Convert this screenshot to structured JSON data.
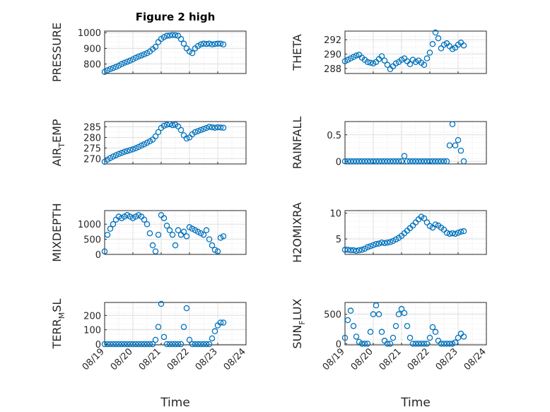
{
  "title": "Figure 2 high",
  "colors": {
    "marker": "#0072BD",
    "grid": "#dfdfdf",
    "axis": "#262626"
  },
  "chart_data": [
    {
      "type": "scatter",
      "ylabel": "PRESSURE",
      "xlabel": "",
      "xlim": [
        0,
        5
      ],
      "ylim": [
        740,
        1010
      ],
      "yticks": [
        800,
        900,
        1000
      ],
      "x": [
        0.0,
        0.1,
        0.2,
        0.3,
        0.4,
        0.5,
        0.6,
        0.7,
        0.8,
        0.9,
        1.0,
        1.1,
        1.2,
        1.3,
        1.4,
        1.5,
        1.6,
        1.7,
        1.8,
        1.9,
        2.0,
        2.1,
        2.2,
        2.3,
        2.4,
        2.5,
        2.6,
        2.7,
        2.8,
        2.9,
        3.0,
        3.1,
        3.2,
        3.3,
        3.4,
        3.5,
        3.6,
        3.7,
        3.8,
        3.9,
        4.0,
        4.1,
        4.2
      ],
      "y": [
        750,
        760,
        768,
        775,
        782,
        790,
        800,
        808,
        815,
        822,
        830,
        840,
        848,
        855,
        862,
        870,
        880,
        895,
        910,
        940,
        960,
        972,
        980,
        982,
        985,
        984,
        980,
        960,
        930,
        900,
        880,
        870,
        900,
        915,
        925,
        930,
        928,
        930,
        925,
        928,
        930,
        930,
        925
      ]
    },
    {
      "type": "scatter",
      "ylabel": "THETA",
      "xlabel": "",
      "xlim": [
        0,
        5
      ],
      "ylim": [
        287.3,
        293.2
      ],
      "yticks": [
        288,
        290,
        292
      ],
      "x": [
        0.0,
        0.1,
        0.2,
        0.3,
        0.4,
        0.5,
        0.6,
        0.7,
        0.8,
        0.9,
        1.0,
        1.1,
        1.2,
        1.3,
        1.4,
        1.5,
        1.6,
        1.7,
        1.8,
        1.9,
        2.0,
        2.1,
        2.2,
        2.3,
        2.4,
        2.5,
        2.6,
        2.7,
        2.8,
        2.9,
        3.0,
        3.1,
        3.2,
        3.3,
        3.4,
        3.5,
        3.6,
        3.7,
        3.8,
        3.9,
        4.0,
        4.1,
        4.2
      ],
      "y": [
        289.0,
        289.2,
        289.4,
        289.6,
        289.8,
        289.9,
        289.5,
        289.2,
        288.9,
        288.8,
        288.7,
        288.9,
        289.3,
        289.7,
        289.1,
        288.5,
        287.9,
        288.3,
        288.7,
        288.9,
        289.2,
        289.4,
        289.0,
        288.6,
        289.2,
        288.9,
        289.1,
        288.8,
        288.5,
        289.4,
        290.2,
        291.4,
        293.0,
        292.2,
        290.8,
        291.3,
        291.5,
        291.1,
        290.7,
        290.9,
        291.3,
        291.6,
        291.2
      ]
    },
    {
      "type": "scatter",
      "ylabel": "AIR_TEMP",
      "xlabel": "",
      "xlim": [
        0,
        5
      ],
      "ylim": [
        267.5,
        287.5
      ],
      "yticks": [
        270,
        275,
        280,
        285
      ],
      "x": [
        0.0,
        0.1,
        0.2,
        0.3,
        0.4,
        0.5,
        0.6,
        0.7,
        0.8,
        0.9,
        1.0,
        1.1,
        1.2,
        1.3,
        1.4,
        1.5,
        1.6,
        1.7,
        1.8,
        1.9,
        2.0,
        2.1,
        2.2,
        2.3,
        2.4,
        2.5,
        2.6,
        2.7,
        2.8,
        2.9,
        3.0,
        3.1,
        3.2,
        3.3,
        3.4,
        3.5,
        3.6,
        3.7,
        3.8,
        3.9,
        4.0,
        4.1,
        4.2
      ],
      "y": [
        268.5,
        269.5,
        270.3,
        271.0,
        271.6,
        272.2,
        272.7,
        273.2,
        273.6,
        274.0,
        274.4,
        274.9,
        275.5,
        276.2,
        276.8,
        277.5,
        278.2,
        279.0,
        280.5,
        282.5,
        284.5,
        285.5,
        286.0,
        286.3,
        285.8,
        286.0,
        285.2,
        283.5,
        281.0,
        279.5,
        280.0,
        281.5,
        282.5,
        283.0,
        283.5,
        284.0,
        284.5,
        285.0,
        284.8,
        284.6,
        284.8,
        284.7,
        284.6
      ]
    },
    {
      "type": "scatter",
      "ylabel": "RAINFALL",
      "xlabel": "",
      "xlim": [
        0,
        5
      ],
      "ylim": [
        -0.05,
        0.75
      ],
      "yticks": [
        0,
        0.5
      ],
      "x": [
        0.0,
        0.1,
        0.2,
        0.3,
        0.4,
        0.5,
        0.6,
        0.7,
        0.8,
        0.9,
        1.0,
        1.1,
        1.2,
        1.3,
        1.4,
        1.5,
        1.6,
        1.7,
        1.8,
        1.9,
        2.0,
        2.1,
        2.2,
        2.3,
        2.4,
        2.5,
        2.6,
        2.7,
        2.8,
        2.9,
        3.0,
        3.1,
        3.2,
        3.3,
        3.4,
        3.5,
        3.6,
        3.7,
        3.8,
        3.9,
        4.0,
        4.1,
        4.2
      ],
      "y": [
        0,
        0,
        0,
        0,
        0,
        0,
        0,
        0,
        0,
        0,
        0,
        0,
        0,
        0,
        0,
        0,
        0,
        0,
        0,
        0,
        0,
        0.1,
        0,
        0,
        0,
        0,
        0,
        0,
        0,
        0,
        0,
        0,
        0,
        0,
        0,
        0,
        0,
        0.3,
        0.7,
        0.3,
        0.4,
        0.2,
        0
      ]
    },
    {
      "type": "scatter",
      "ylabel": "MIXDEPTH",
      "xlabel": "",
      "xlim": [
        0,
        5
      ],
      "ylim": [
        0,
        1450
      ],
      "yticks": [
        0,
        500,
        1000
      ],
      "x": [
        0.0,
        0.1,
        0.2,
        0.3,
        0.4,
        0.5,
        0.6,
        0.7,
        0.8,
        0.9,
        1.0,
        1.1,
        1.2,
        1.3,
        1.4,
        1.5,
        1.6,
        1.7,
        1.8,
        1.9,
        2.0,
        2.1,
        2.2,
        2.3,
        2.4,
        2.5,
        2.6,
        2.7,
        2.8,
        2.9,
        3.0,
        3.1,
        3.2,
        3.3,
        3.4,
        3.5,
        3.6,
        3.7,
        3.8,
        3.9,
        4.0,
        4.1,
        4.2
      ],
      "y": [
        100,
        650,
        850,
        1000,
        1150,
        1250,
        1200,
        1250,
        1300,
        1250,
        1200,
        1250,
        1300,
        1250,
        1150,
        1000,
        700,
        300,
        100,
        650,
        1300,
        1200,
        950,
        800,
        650,
        300,
        800,
        650,
        750,
        600,
        900,
        850,
        800,
        750,
        700,
        650,
        800,
        500,
        300,
        150,
        100,
        550,
        600
      ]
    },
    {
      "type": "scatter",
      "ylabel": "H2OMIXRA",
      "xlabel": "",
      "xlim": [
        0,
        5
      ],
      "ylim": [
        2.0,
        10.5
      ],
      "yticks": [
        5,
        10
      ],
      "x": [
        0.0,
        0.1,
        0.2,
        0.3,
        0.4,
        0.5,
        0.6,
        0.7,
        0.8,
        0.9,
        1.0,
        1.1,
        1.2,
        1.3,
        1.4,
        1.5,
        1.6,
        1.7,
        1.8,
        1.9,
        2.0,
        2.1,
        2.2,
        2.3,
        2.4,
        2.5,
        2.6,
        2.7,
        2.8,
        2.9,
        3.0,
        3.1,
        3.2,
        3.3,
        3.4,
        3.5,
        3.6,
        3.7,
        3.8,
        3.9,
        4.0,
        4.1,
        4.2
      ],
      "y": [
        2.9,
        2.9,
        2.8,
        2.8,
        2.7,
        2.8,
        2.9,
        3.1,
        3.4,
        3.6,
        3.8,
        4.0,
        4.1,
        4.3,
        4.2,
        4.3,
        4.4,
        4.6,
        4.9,
        5.2,
        5.6,
        6.1,
        6.6,
        7.1,
        7.6,
        8.2,
        8.8,
        9.3,
        9.0,
        8.2,
        7.5,
        7.2,
        7.8,
        7.6,
        7.2,
        6.8,
        6.2,
        6.0,
        6.1,
        6.0,
        6.2,
        6.4,
        6.5
      ]
    },
    {
      "type": "scatter",
      "ylabel": "TERR_MSL",
      "xlabel": "Time",
      "xlim": [
        0,
        5
      ],
      "ylim": [
        -5,
        290
      ],
      "yticks": [
        0,
        100,
        200
      ],
      "xticklabels": [
        "08/19",
        "08/20",
        "08/21",
        "08/22",
        "08/23",
        "08/24"
      ],
      "x": [
        0.0,
        0.1,
        0.2,
        0.3,
        0.4,
        0.5,
        0.6,
        0.7,
        0.8,
        0.9,
        1.0,
        1.1,
        1.2,
        1.3,
        1.4,
        1.5,
        1.6,
        1.7,
        1.8,
        1.9,
        2.0,
        2.1,
        2.2,
        2.3,
        2.4,
        2.5,
        2.6,
        2.7,
        2.8,
        2.9,
        3.0,
        3.1,
        3.2,
        3.3,
        3.4,
        3.5,
        3.6,
        3.7,
        3.8,
        3.9,
        4.0,
        4.1,
        4.2
      ],
      "y": [
        0,
        0,
        0,
        0,
        0,
        0,
        0,
        0,
        0,
        0,
        0,
        0,
        0,
        0,
        0,
        0,
        0,
        0,
        30,
        120,
        280,
        50,
        0,
        0,
        0,
        0,
        0,
        0,
        120,
        250,
        30,
        0,
        0,
        0,
        0,
        0,
        0,
        0,
        40,
        90,
        130,
        150,
        150
      ]
    },
    {
      "type": "scatter",
      "ylabel": "SUN_FLUX",
      "xlabel": "Time",
      "xlim": [
        0,
        5
      ],
      "ylim": [
        -20,
        700
      ],
      "yticks": [
        0,
        500
      ],
      "xticklabels": [
        "08/19",
        "08/20",
        "08/21",
        "08/22",
        "08/23",
        "08/24"
      ],
      "x": [
        0.0,
        0.1,
        0.2,
        0.3,
        0.4,
        0.5,
        0.6,
        0.7,
        0.8,
        0.9,
        1.0,
        1.1,
        1.2,
        1.3,
        1.4,
        1.5,
        1.6,
        1.7,
        1.8,
        1.9,
        2.0,
        2.1,
        2.2,
        2.3,
        2.4,
        2.5,
        2.6,
        2.7,
        2.8,
        2.9,
        3.0,
        3.1,
        3.2,
        3.3,
        3.4,
        3.5,
        3.6,
        3.7,
        3.8,
        3.9,
        4.0,
        4.1,
        4.2
      ],
      "y": [
        100,
        400,
        560,
        300,
        120,
        30,
        0,
        0,
        0,
        200,
        500,
        650,
        500,
        200,
        50,
        0,
        0,
        100,
        300,
        500,
        590,
        520,
        300,
        100,
        0,
        0,
        0,
        0,
        0,
        0,
        100,
        280,
        200,
        50,
        0,
        0,
        0,
        0,
        0,
        20,
        100,
        170,
        120
      ]
    }
  ]
}
